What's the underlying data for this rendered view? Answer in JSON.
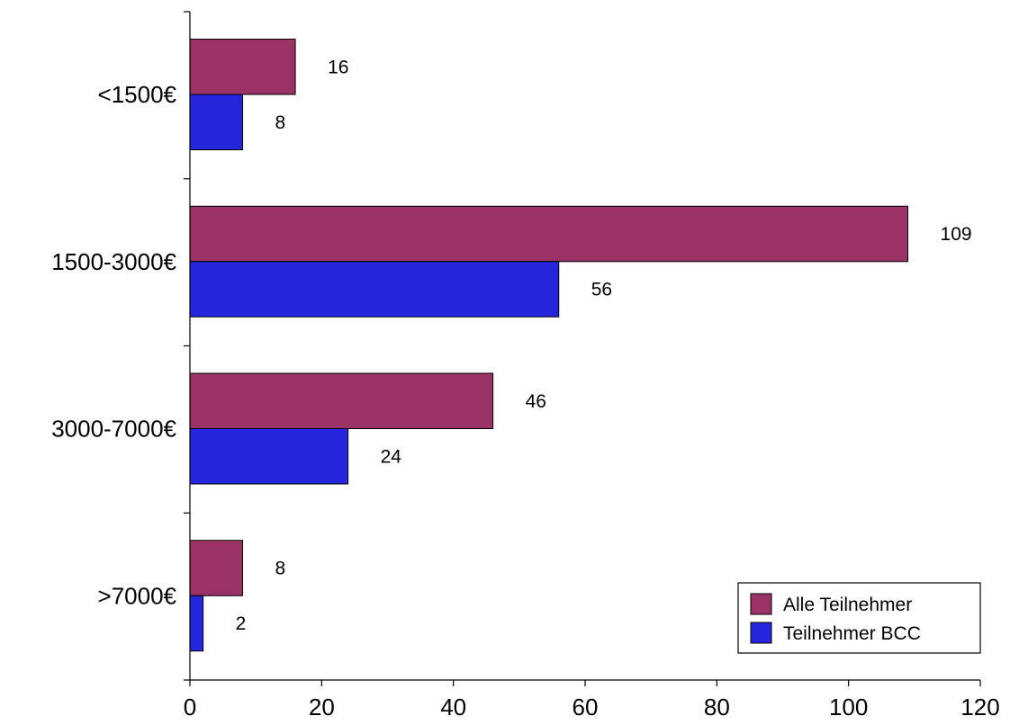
{
  "chart_data": {
    "type": "bar",
    "orientation": "horizontal",
    "categories": [
      "<1500€",
      "1500-3000€",
      "3000-7000€",
      ">7000€"
    ],
    "series": [
      {
        "name": "Alle Teilnehmer",
        "values": [
          16,
          109,
          46,
          8
        ],
        "color": "#993366"
      },
      {
        "name": "Teilnehmer BCC",
        "values": [
          8,
          56,
          24,
          2
        ],
        "color": "#2626DC"
      }
    ],
    "title": "",
    "xlabel": "",
    "ylabel": "",
    "xlim": [
      0,
      120
    ],
    "x_ticks": [
      0,
      20,
      40,
      60,
      80,
      100,
      120
    ],
    "grid": false,
    "legend_position": "bottom-right"
  }
}
